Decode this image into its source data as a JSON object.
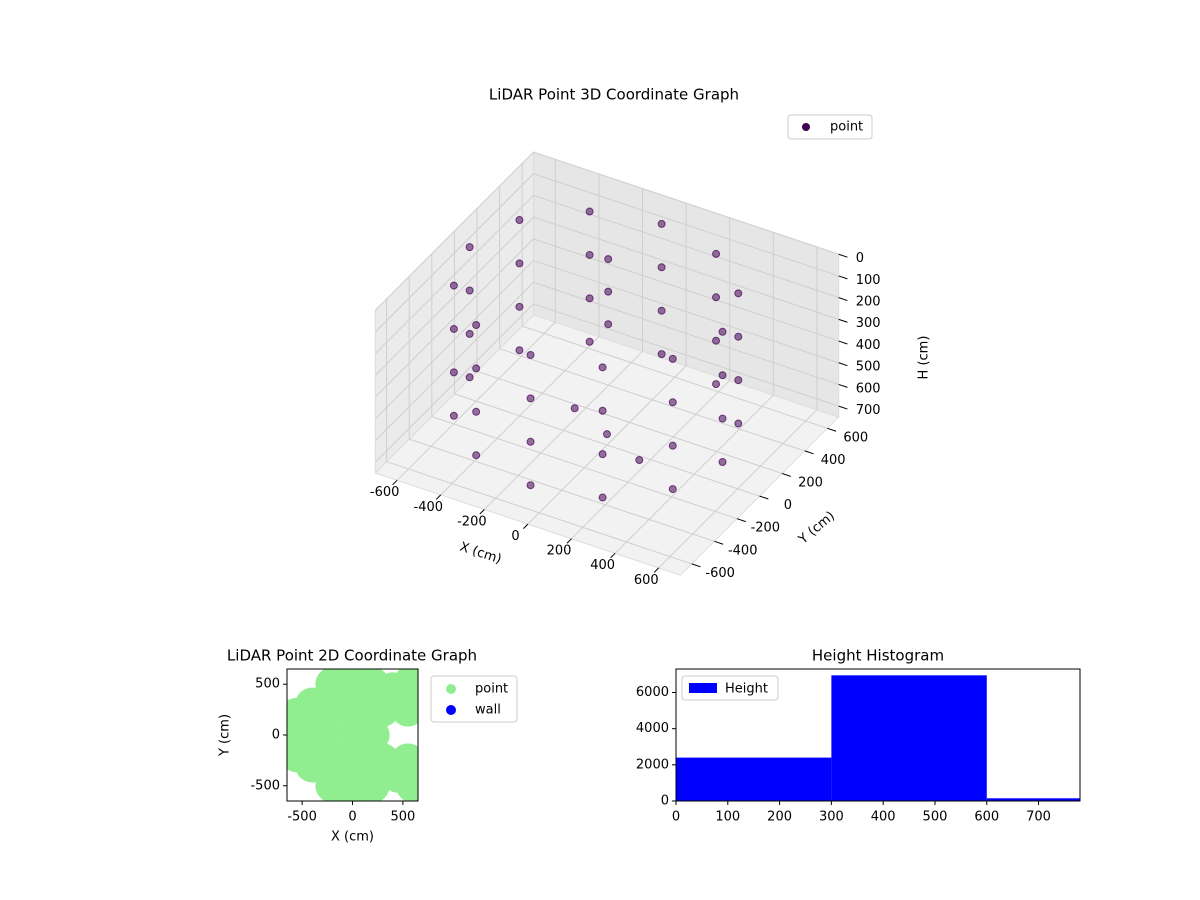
{
  "chart_data": [
    {
      "type": "scatter3d",
      "title": "LiDAR Point 3D Coordinate Graph",
      "xlabel": "X (cm)",
      "ylabel": "Y (cm)",
      "zlabel": "H (cm)",
      "xlim": [
        -700,
        700
      ],
      "ylim": [
        -700,
        700
      ],
      "zlim": [
        750,
        0
      ],
      "xticks": [
        -600,
        -400,
        -200,
        0,
        200,
        400,
        600
      ],
      "yticks": [
        -600,
        -400,
        -200,
        0,
        200,
        400,
        600
      ],
      "zticks": [
        0,
        100,
        200,
        300,
        400,
        500,
        600,
        700
      ],
      "legend": "upper right",
      "series": [
        {
          "name": "point",
          "color": "#440154",
          "x": [
            530,
            452,
            240,
            -50,
            -340,
            -552,
            -630,
            -552,
            -340,
            -50,
            240,
            452,
            530,
            452,
            240,
            -50,
            -340,
            -552,
            -630,
            -552,
            -340,
            -50,
            240,
            452,
            530,
            452,
            240,
            -50,
            -340,
            -552,
            -630,
            -552,
            -340,
            -50,
            240,
            452,
            530,
            452,
            240,
            -50,
            -340,
            -552,
            -630,
            -552,
            -340,
            -50,
            240,
            452,
            0,
            -200,
            200,
            -150,
            -150,
            -150
          ],
          "y": [
            0,
            290,
            502,
            580,
            502,
            290,
            0,
            -290,
            -502,
            -580,
            -502,
            -290,
            0,
            290,
            502,
            580,
            502,
            290,
            0,
            -290,
            -502,
            -580,
            -502,
            -290,
            0,
            290,
            502,
            580,
            502,
            290,
            0,
            -290,
            -502,
            -580,
            -502,
            -290,
            0,
            290,
            502,
            580,
            502,
            290,
            0,
            -290,
            -502,
            -580,
            -502,
            -290,
            0,
            100,
            -100,
            300,
            300,
            300
          ],
          "z": [
            50,
            50,
            50,
            50,
            50,
            50,
            50,
            50,
            50,
            50,
            50,
            50,
            250,
            250,
            250,
            250,
            250,
            250,
            250,
            250,
            250,
            250,
            250,
            250,
            450,
            450,
            450,
            450,
            450,
            450,
            450,
            450,
            450,
            450,
            450,
            450,
            650,
            650,
            650,
            650,
            650,
            650,
            650,
            650,
            650,
            650,
            650,
            650,
            700,
            700,
            700,
            100,
            250,
            400
          ]
        }
      ]
    },
    {
      "type": "scatter",
      "title": "LiDAR Point 2D Coordinate Graph",
      "xlabel": "X (cm)",
      "ylabel": "Y (cm)",
      "xlim": [
        -650,
        650
      ],
      "ylim": [
        -650,
        650
      ],
      "xticks": [
        -500,
        0,
        500
      ],
      "yticks": [
        -500,
        0,
        500
      ],
      "legend": "outside right",
      "series": [
        {
          "name": "point",
          "color": "#90ee90",
          "x": [
            0,
            -300,
            -500,
            -400,
            -400,
            -200,
            -200,
            0,
            0,
            200,
            200,
            300,
            300,
            400,
            450,
            200,
            -150,
            -150,
            550,
            550,
            0,
            0,
            -550,
            -550,
            150,
            150,
            600,
            600
          ],
          "y": [
            0,
            0,
            0,
            300,
            -300,
            500,
            -500,
            300,
            -300,
            500,
            -500,
            250,
            -250,
            450,
            -400,
            0,
            250,
            -250,
            250,
            -250,
            600,
            -600,
            200,
            -200,
            150,
            -150,
            550,
            -500
          ]
        },
        {
          "name": "wall",
          "color": "#0000ff",
          "x": [],
          "y": []
        }
      ]
    },
    {
      "type": "histogram",
      "title": "Height Histogram",
      "name": "Height",
      "color": "#0000ff",
      "bins": [
        0,
        300,
        600,
        780
      ],
      "counts": [
        2400,
        6950,
        150
      ],
      "xlim": [
        0,
        780
      ],
      "ylim": [
        0,
        7300
      ],
      "xticks": [
        0,
        100,
        200,
        300,
        400,
        500,
        600,
        700
      ],
      "yticks": [
        0,
        2000,
        4000,
        6000
      ],
      "legend": "upper left"
    }
  ]
}
